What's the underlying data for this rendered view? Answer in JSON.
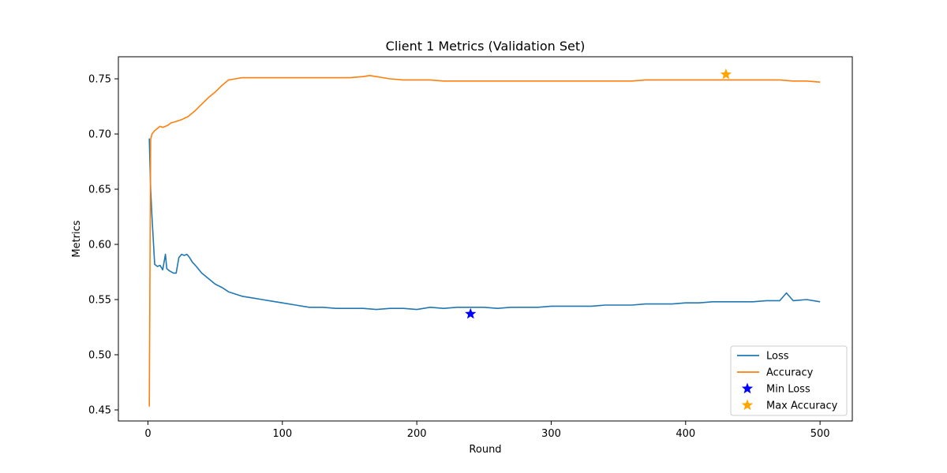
{
  "chart_data": {
    "type": "line",
    "title": "Client 1 Metrics (Validation Set)",
    "xlabel": "Round",
    "ylabel": "Metrics",
    "xlim": [
      -22,
      524
    ],
    "ylim": [
      0.44,
      0.77
    ],
    "xticks": [
      0,
      100,
      200,
      300,
      400,
      500
    ],
    "yticks": [
      0.45,
      0.5,
      0.55,
      0.6,
      0.65,
      0.7,
      0.75
    ],
    "ytick_labels": [
      "0.45",
      "0.50",
      "0.55",
      "0.60",
      "0.65",
      "0.70",
      "0.75"
    ],
    "grid": false,
    "legend_position": "lower right",
    "series": [
      {
        "name": "Loss",
        "color": "#1f77b4",
        "points": [
          [
            1,
            0.696
          ],
          [
            2,
            0.65
          ],
          [
            3,
            0.625
          ],
          [
            5,
            0.582
          ],
          [
            7,
            0.58
          ],
          [
            9,
            0.581
          ],
          [
            11,
            0.577
          ],
          [
            13,
            0.591
          ],
          [
            14,
            0.578
          ],
          [
            16,
            0.576
          ],
          [
            19,
            0.574
          ],
          [
            21,
            0.574
          ],
          [
            23,
            0.588
          ],
          [
            25,
            0.591
          ],
          [
            27,
            0.59
          ],
          [
            29,
            0.591
          ],
          [
            31,
            0.588
          ],
          [
            33,
            0.584
          ],
          [
            36,
            0.58
          ],
          [
            40,
            0.574
          ],
          [
            45,
            0.569
          ],
          [
            50,
            0.564
          ],
          [
            55,
            0.561
          ],
          [
            60,
            0.557
          ],
          [
            65,
            0.555
          ],
          [
            70,
            0.553
          ],
          [
            75,
            0.552
          ],
          [
            80,
            0.551
          ],
          [
            85,
            0.55
          ],
          [
            90,
            0.549
          ],
          [
            95,
            0.548
          ],
          [
            100,
            0.547
          ],
          [
            110,
            0.545
          ],
          [
            120,
            0.543
          ],
          [
            130,
            0.543
          ],
          [
            140,
            0.542
          ],
          [
            150,
            0.542
          ],
          [
            160,
            0.542
          ],
          [
            170,
            0.541
          ],
          [
            180,
            0.542
          ],
          [
            190,
            0.542
          ],
          [
            200,
            0.541
          ],
          [
            210,
            0.543
          ],
          [
            220,
            0.542
          ],
          [
            230,
            0.543
          ],
          [
            240,
            0.543
          ],
          [
            250,
            0.543
          ],
          [
            260,
            0.542
          ],
          [
            270,
            0.543
          ],
          [
            280,
            0.543
          ],
          [
            290,
            0.543
          ],
          [
            300,
            0.544
          ],
          [
            310,
            0.544
          ],
          [
            320,
            0.544
          ],
          [
            330,
            0.544
          ],
          [
            340,
            0.545
          ],
          [
            350,
            0.545
          ],
          [
            360,
            0.545
          ],
          [
            370,
            0.546
          ],
          [
            380,
            0.546
          ],
          [
            390,
            0.546
          ],
          [
            400,
            0.547
          ],
          [
            410,
            0.547
          ],
          [
            420,
            0.548
          ],
          [
            430,
            0.548
          ],
          [
            440,
            0.548
          ],
          [
            450,
            0.548
          ],
          [
            460,
            0.549
          ],
          [
            470,
            0.549
          ],
          [
            475,
            0.556
          ],
          [
            480,
            0.549
          ],
          [
            490,
            0.55
          ],
          [
            500,
            0.548
          ]
        ]
      },
      {
        "name": "Accuracy",
        "color": "#ff7f0e",
        "points": [
          [
            1,
            0.453
          ],
          [
            2,
            0.695
          ],
          [
            3,
            0.7
          ],
          [
            5,
            0.703
          ],
          [
            7,
            0.705
          ],
          [
            9,
            0.707
          ],
          [
            11,
            0.706
          ],
          [
            13,
            0.707
          ],
          [
            15,
            0.708
          ],
          [
            17,
            0.71
          ],
          [
            20,
            0.711
          ],
          [
            25,
            0.713
          ],
          [
            30,
            0.716
          ],
          [
            35,
            0.721
          ],
          [
            40,
            0.727
          ],
          [
            45,
            0.733
          ],
          [
            50,
            0.738
          ],
          [
            55,
            0.744
          ],
          [
            60,
            0.749
          ],
          [
            65,
            0.75
          ],
          [
            70,
            0.751
          ],
          [
            80,
            0.751
          ],
          [
            90,
            0.751
          ],
          [
            100,
            0.751
          ],
          [
            110,
            0.751
          ],
          [
            120,
            0.751
          ],
          [
            130,
            0.751
          ],
          [
            140,
            0.751
          ],
          [
            150,
            0.751
          ],
          [
            160,
            0.752
          ],
          [
            165,
            0.753
          ],
          [
            170,
            0.752
          ],
          [
            180,
            0.75
          ],
          [
            190,
            0.749
          ],
          [
            200,
            0.749
          ],
          [
            210,
            0.749
          ],
          [
            220,
            0.748
          ],
          [
            230,
            0.748
          ],
          [
            240,
            0.748
          ],
          [
            250,
            0.748
          ],
          [
            260,
            0.748
          ],
          [
            270,
            0.748
          ],
          [
            280,
            0.748
          ],
          [
            290,
            0.748
          ],
          [
            300,
            0.748
          ],
          [
            310,
            0.748
          ],
          [
            320,
            0.748
          ],
          [
            330,
            0.748
          ],
          [
            340,
            0.748
          ],
          [
            350,
            0.748
          ],
          [
            360,
            0.748
          ],
          [
            370,
            0.749
          ],
          [
            380,
            0.749
          ],
          [
            390,
            0.749
          ],
          [
            400,
            0.749
          ],
          [
            410,
            0.749
          ],
          [
            420,
            0.749
          ],
          [
            430,
            0.749
          ],
          [
            440,
            0.749
          ],
          [
            450,
            0.749
          ],
          [
            460,
            0.749
          ],
          [
            470,
            0.749
          ],
          [
            480,
            0.748
          ],
          [
            490,
            0.748
          ],
          [
            500,
            0.747
          ]
        ]
      }
    ],
    "markers": [
      {
        "name": "Min Loss",
        "x": 240,
        "y": 0.537,
        "color": "#0000ff",
        "shape": "star"
      },
      {
        "name": "Max Accuracy",
        "x": 430,
        "y": 0.754,
        "color": "#ffa500",
        "shape": "star"
      }
    ],
    "legend": [
      {
        "label": "Loss",
        "kind": "line",
        "color": "#1f77b4"
      },
      {
        "label": "Accuracy",
        "kind": "line",
        "color": "#ff7f0e"
      },
      {
        "label": "Min Loss",
        "kind": "star",
        "color": "#0000ff"
      },
      {
        "label": "Max Accuracy",
        "kind": "star",
        "color": "#ffa500"
      }
    ]
  }
}
